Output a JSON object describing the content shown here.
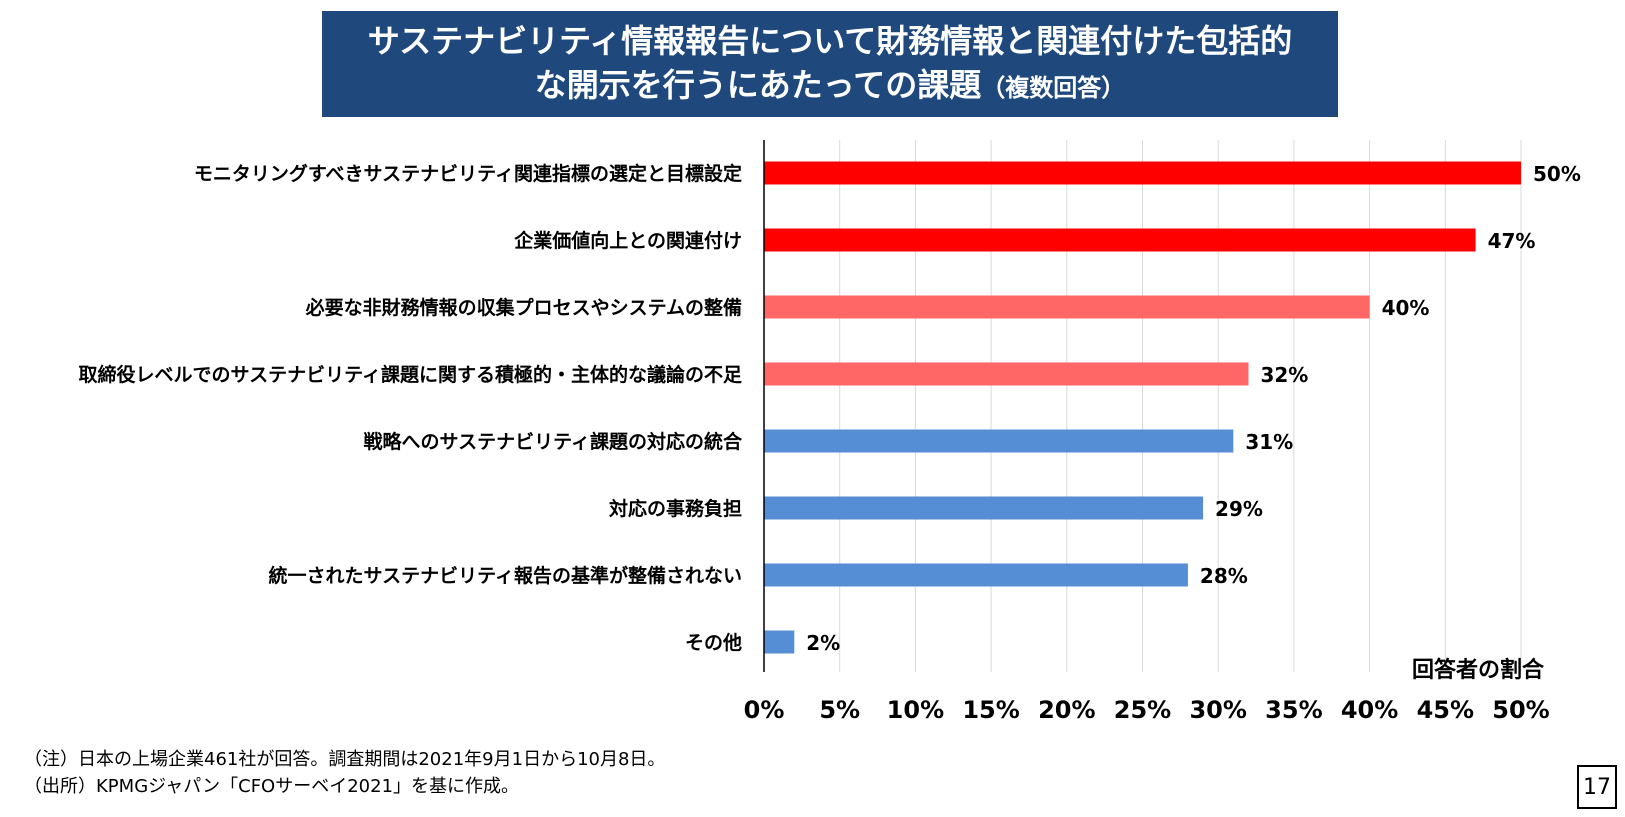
{
  "title": {
    "line1": "サステナビリティ情報報告について財務情報と関連付けた包括的",
    "line2": "な開示を行うにあたっての課題",
    "sub": "（複数回答）"
  },
  "chart_data": {
    "type": "bar",
    "orientation": "horizontal",
    "categories": [
      "モニタリングすべきサステナビリティ関連指標の選定と目標設定",
      "企業価値向上との関連付け",
      "必要な非財務情報の収集プロセスやシステムの整備",
      "取締役レベルでのサステナビリティ課題に関する積極的・主体的な議論の不足",
      "戦略へのサステナビリティ課題の対応の統合",
      "対応の事務負担",
      "統一されたサステナビリティ報告の基準が整備されない",
      "その他"
    ],
    "values": [
      50,
      47,
      40,
      32,
      31,
      29,
      28,
      2
    ],
    "value_labels": [
      "50%",
      "47%",
      "40%",
      "32%",
      "31%",
      "29%",
      "28%",
      "2%"
    ],
    "bar_colors": [
      "#ff0000",
      "#ff0000",
      "#ff6666",
      "#ff6666",
      "#558ed5",
      "#558ed5",
      "#558ed5",
      "#558ed5"
    ],
    "xlim": [
      0,
      50
    ],
    "xticks": [
      0,
      5,
      10,
      15,
      20,
      25,
      30,
      35,
      40,
      45,
      50
    ],
    "xtick_labels": [
      "0%",
      "5%",
      "10%",
      "15%",
      "20%",
      "25%",
      "30%",
      "35%",
      "40%",
      "45%",
      "50%"
    ],
    "xlabel": "回答者の割合",
    "grid": true
  },
  "notes": {
    "line1": "（注）日本の上場企業461社が回答。調査期間は2021年9月1日から10月8日。",
    "line2": "（出所）KPMGジャパン「CFOサーベイ2021」を基に作成。"
  },
  "page_number": "17"
}
